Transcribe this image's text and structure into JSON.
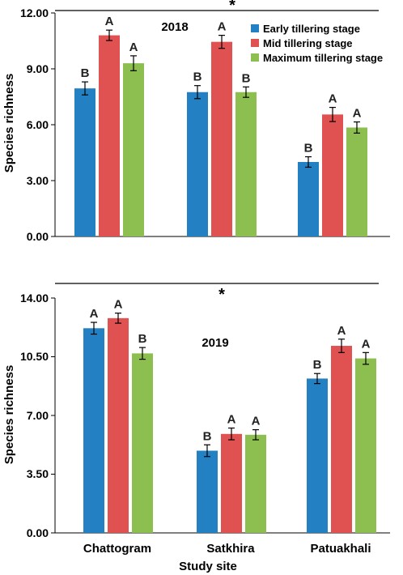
{
  "legend": {
    "placement": "top-right of upper panel",
    "items": [
      {
        "label": "Early tillering stage",
        "color": "#2380c3"
      },
      {
        "label": "Mid tillering stage",
        "color": "#e05252"
      },
      {
        "label": "Maximum tillering stage",
        "color": "#8cbf4f"
      }
    ]
  },
  "xlabel": "Study site",
  "significance_marker": "*",
  "chart_data": [
    {
      "type": "bar",
      "panel_label": "2018",
      "categories": [
        "Chattogram",
        "Satkhira",
        "Patuakhali"
      ],
      "ylabel": "Species richness",
      "ylim": [
        0,
        12
      ],
      "yticks": [
        "0.00",
        "3.00",
        "6.00",
        "9.00",
        "12.00"
      ],
      "grid": false,
      "series": [
        {
          "name": "Early tillering stage",
          "color": "#2380c3",
          "values": [
            7.95,
            7.75,
            4.0
          ],
          "errors": [
            0.35,
            0.35,
            0.28
          ],
          "letters": [
            "B",
            "B",
            "B"
          ]
        },
        {
          "name": "Mid tillering stage",
          "color": "#e05252",
          "values": [
            10.8,
            10.45,
            6.55
          ],
          "errors": [
            0.28,
            0.35,
            0.38
          ],
          "letters": [
            "A",
            "A",
            "A"
          ]
        },
        {
          "name": "Maximum tillering stage",
          "color": "#8cbf4f",
          "values": [
            9.3,
            7.75,
            5.85
          ],
          "errors": [
            0.4,
            0.28,
            0.3
          ],
          "letters": [
            "A",
            "B",
            "A"
          ]
        }
      ]
    },
    {
      "type": "bar",
      "panel_label": "2019",
      "categories": [
        "Chattogram",
        "Satkhira",
        "Patuakhali"
      ],
      "ylabel": "Species richness",
      "ylim": [
        0,
        14
      ],
      "yticks": [
        "0.00",
        "3.50",
        "7.00",
        "10.50",
        "14.00"
      ],
      "grid": false,
      "series": [
        {
          "name": "Early tillering stage",
          "color": "#2380c3",
          "values": [
            12.2,
            4.9,
            9.2
          ],
          "errors": [
            0.35,
            0.35,
            0.3
          ],
          "letters": [
            "A",
            "B",
            "B"
          ]
        },
        {
          "name": "Mid tillering stage",
          "color": "#e05252",
          "values": [
            12.8,
            5.9,
            11.15
          ],
          "errors": [
            0.3,
            0.35,
            0.4
          ],
          "letters": [
            "A",
            "A",
            "A"
          ]
        },
        {
          "name": "Maximum tillering stage",
          "color": "#8cbf4f",
          "values": [
            10.7,
            5.85,
            10.4
          ],
          "errors": [
            0.35,
            0.3,
            0.35
          ],
          "letters": [
            "B",
            "A",
            "A"
          ]
        }
      ]
    }
  ]
}
